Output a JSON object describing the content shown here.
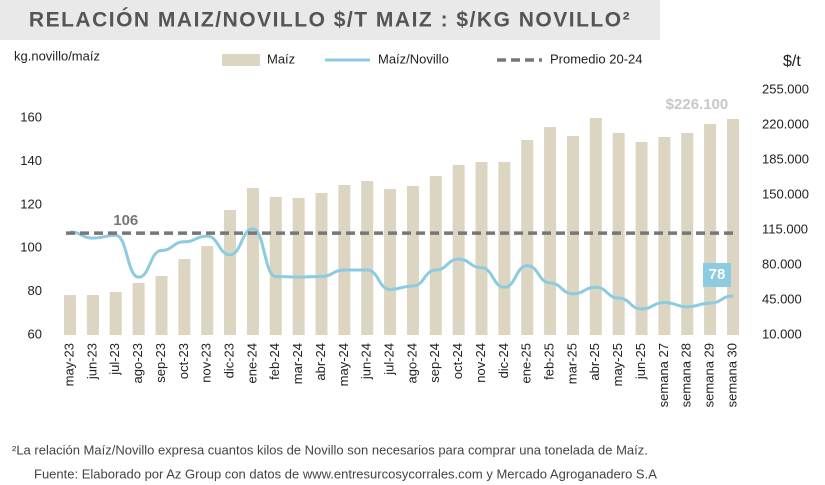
{
  "chart_data": {
    "type": "bar_line",
    "title": "RELACIÓN MAIZ/NOVILLO $/T MAIZ : $/KG NOVILLO²",
    "y_label": "kg.novillo/maíz",
    "y2_label": "$/t",
    "footnote": "²La relación Maíz/Novillo expresa cuantos kilos de Novillo son necesarios para comprar una tonelada de Maíz.",
    "source": "Fuente: Elaborado por Az Group con datos de www.entresurcosycorrales.com y Mercado Agroganadero S.A",
    "categories": [
      "may-23",
      "jun-23",
      "jul-23",
      "ago-23",
      "sep-23",
      "oct-23",
      "nov-23",
      "dic-23",
      "ene-24",
      "feb-24",
      "mar-24",
      "abr-24",
      "may-24",
      "jun-24",
      "jul-24",
      "ago-24",
      "sep-24",
      "oct-24",
      "nov-24",
      "dic-24",
      "ene-25",
      "feb-25",
      "mar-25",
      "abr-25",
      "may-25",
      "jun-25",
      "semana 27",
      "semana 28",
      "semana 29",
      "semana 30"
    ],
    "series": [
      {
        "name": "Maíz",
        "type": "bar",
        "axis": "y2",
        "color": "#dbd5c1",
        "values": [
          50000,
          50000,
          53000,
          62000,
          69000,
          86000,
          99000,
          135000,
          157000,
          148000,
          147000,
          152000,
          160000,
          164000,
          156000,
          159000,
          169000,
          180000,
          183000,
          183000,
          205000,
          218000,
          209000,
          227000,
          212000,
          203000,
          208000,
          212000,
          221000,
          226100
        ],
        "value_labels": [
          null,
          null,
          null,
          null,
          null,
          null,
          null,
          null,
          null,
          null,
          null,
          null,
          null,
          null,
          null,
          null,
          null,
          null,
          null,
          null,
          null,
          null,
          null,
          null,
          null,
          null,
          null,
          null,
          null,
          "$226.100"
        ]
      },
      {
        "name": "Maíz/Novillo",
        "type": "line",
        "axis": "y",
        "color": "#8ccbe0",
        "values": [
          107.5,
          104.7,
          106,
          86.7,
          99,
          103,
          105.6,
          97,
          109,
          87,
          86.7,
          87,
          90,
          90,
          81,
          82.6,
          90,
          95,
          91,
          82,
          92,
          84,
          79,
          82,
          77,
          72,
          75,
          73,
          74.7,
          78
        ],
        "value_labels": [
          null,
          null,
          "106",
          null,
          null,
          null,
          null,
          null,
          null,
          null,
          null,
          null,
          null,
          null,
          null,
          null,
          null,
          null,
          null,
          null,
          null,
          null,
          null,
          null,
          null,
          null,
          null,
          null,
          null,
          "78"
        ]
      }
    ],
    "reference_line": {
      "name": "Promedio 20-24",
      "value": 107,
      "color": "#777777",
      "dashed": true
    },
    "ylim": [
      60,
      173
    ],
    "yticks": [
      60,
      80,
      100,
      120,
      140,
      160
    ],
    "y2lim": [
      10000,
      255000
    ],
    "y2ticks": [
      {
        "value": 10000,
        "label": "10.000"
      },
      {
        "value": 45000,
        "label": "45.000"
      },
      {
        "value": 80000,
        "label": "80.000"
      },
      {
        "value": 115000,
        "label": "115.000"
      },
      {
        "value": 150000,
        "label": "150.000"
      },
      {
        "value": 185000,
        "label": "185.000"
      },
      {
        "value": 220000,
        "label": "220.000"
      },
      {
        "value": 255000,
        "label": "255.000"
      }
    ]
  }
}
